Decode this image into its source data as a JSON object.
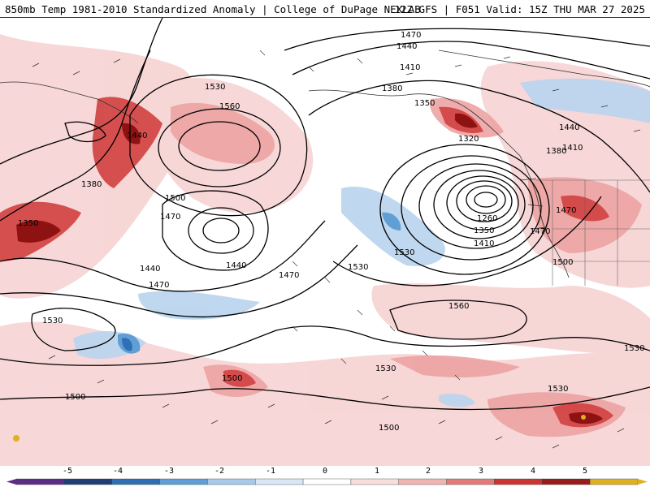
{
  "header": {
    "title_left": "850mb Temp 1981-2010 Standardized Anomaly | College of DuPage NEXLAB",
    "title_right": "12Z GFS | F051 Valid: 15Z THU MAR 27 2025"
  },
  "contour_labels": [
    "1470",
    "1440",
    "1410",
    "1380",
    "1350",
    "1320",
    "1530",
    "1560",
    "1500",
    "1470",
    "1440",
    "1380",
    "1350",
    "1260",
    "1350",
    "1410",
    "1530",
    "1470",
    "1500",
    "1530",
    "1470",
    "1440",
    "1440",
    "1470",
    "1530",
    "1560",
    "1530",
    "1500",
    "1500",
    "1500",
    "1530",
    "1530",
    "1410",
    "1380",
    "1440",
    "1470"
  ],
  "colorbar": {
    "labels": [
      "-5",
      "-4",
      "-3",
      "-2",
      "-1",
      "0",
      "1",
      "2",
      "3",
      "4",
      "5"
    ],
    "colors": [
      "#5b2d86",
      "#1f3e78",
      "#2f6fb3",
      "#5f9fd6",
      "#a9c9ea",
      "#d9e6f5",
      "#ffffff",
      "#f9dede",
      "#f2b3b3",
      "#e37b7b",
      "#cc3333",
      "#9a1b1b",
      "#e0b020"
    ]
  }
}
